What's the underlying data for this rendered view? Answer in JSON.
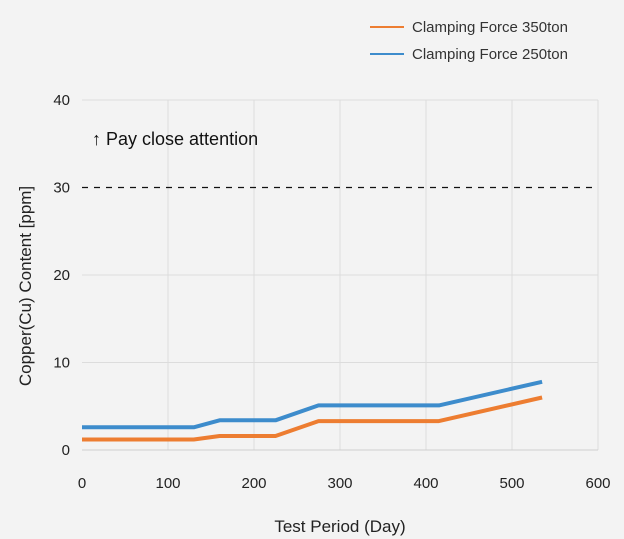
{
  "chart_data": {
    "type": "line",
    "title": "",
    "xlabel": "Test Period (Day)",
    "ylabel": "Copper(Cu) Content [ppm]",
    "xlim": [
      0,
      600
    ],
    "ylim": [
      0,
      40
    ],
    "xticks": [
      0,
      100,
      200,
      300,
      400,
      500,
      600
    ],
    "yticks": [
      0,
      10,
      20,
      30,
      40
    ],
    "grid": "on",
    "legend": "top-right",
    "annotation": {
      "text": "↑ Pay close attention",
      "threshold": 30
    },
    "series": [
      {
        "name": "Clamping Force 350ton",
        "color": "#ed7d31",
        "x": [
          0,
          130,
          160,
          225,
          275,
          415,
          535
        ],
        "y": [
          1.2,
          1.2,
          1.6,
          1.6,
          3.3,
          3.3,
          6.0
        ]
      },
      {
        "name": "Clamping Force 250ton",
        "color": "#3d8ccc",
        "x": [
          0,
          130,
          160,
          225,
          275,
          415,
          535
        ],
        "y": [
          2.6,
          2.6,
          3.4,
          3.4,
          5.1,
          5.1,
          7.8
        ]
      }
    ]
  }
}
